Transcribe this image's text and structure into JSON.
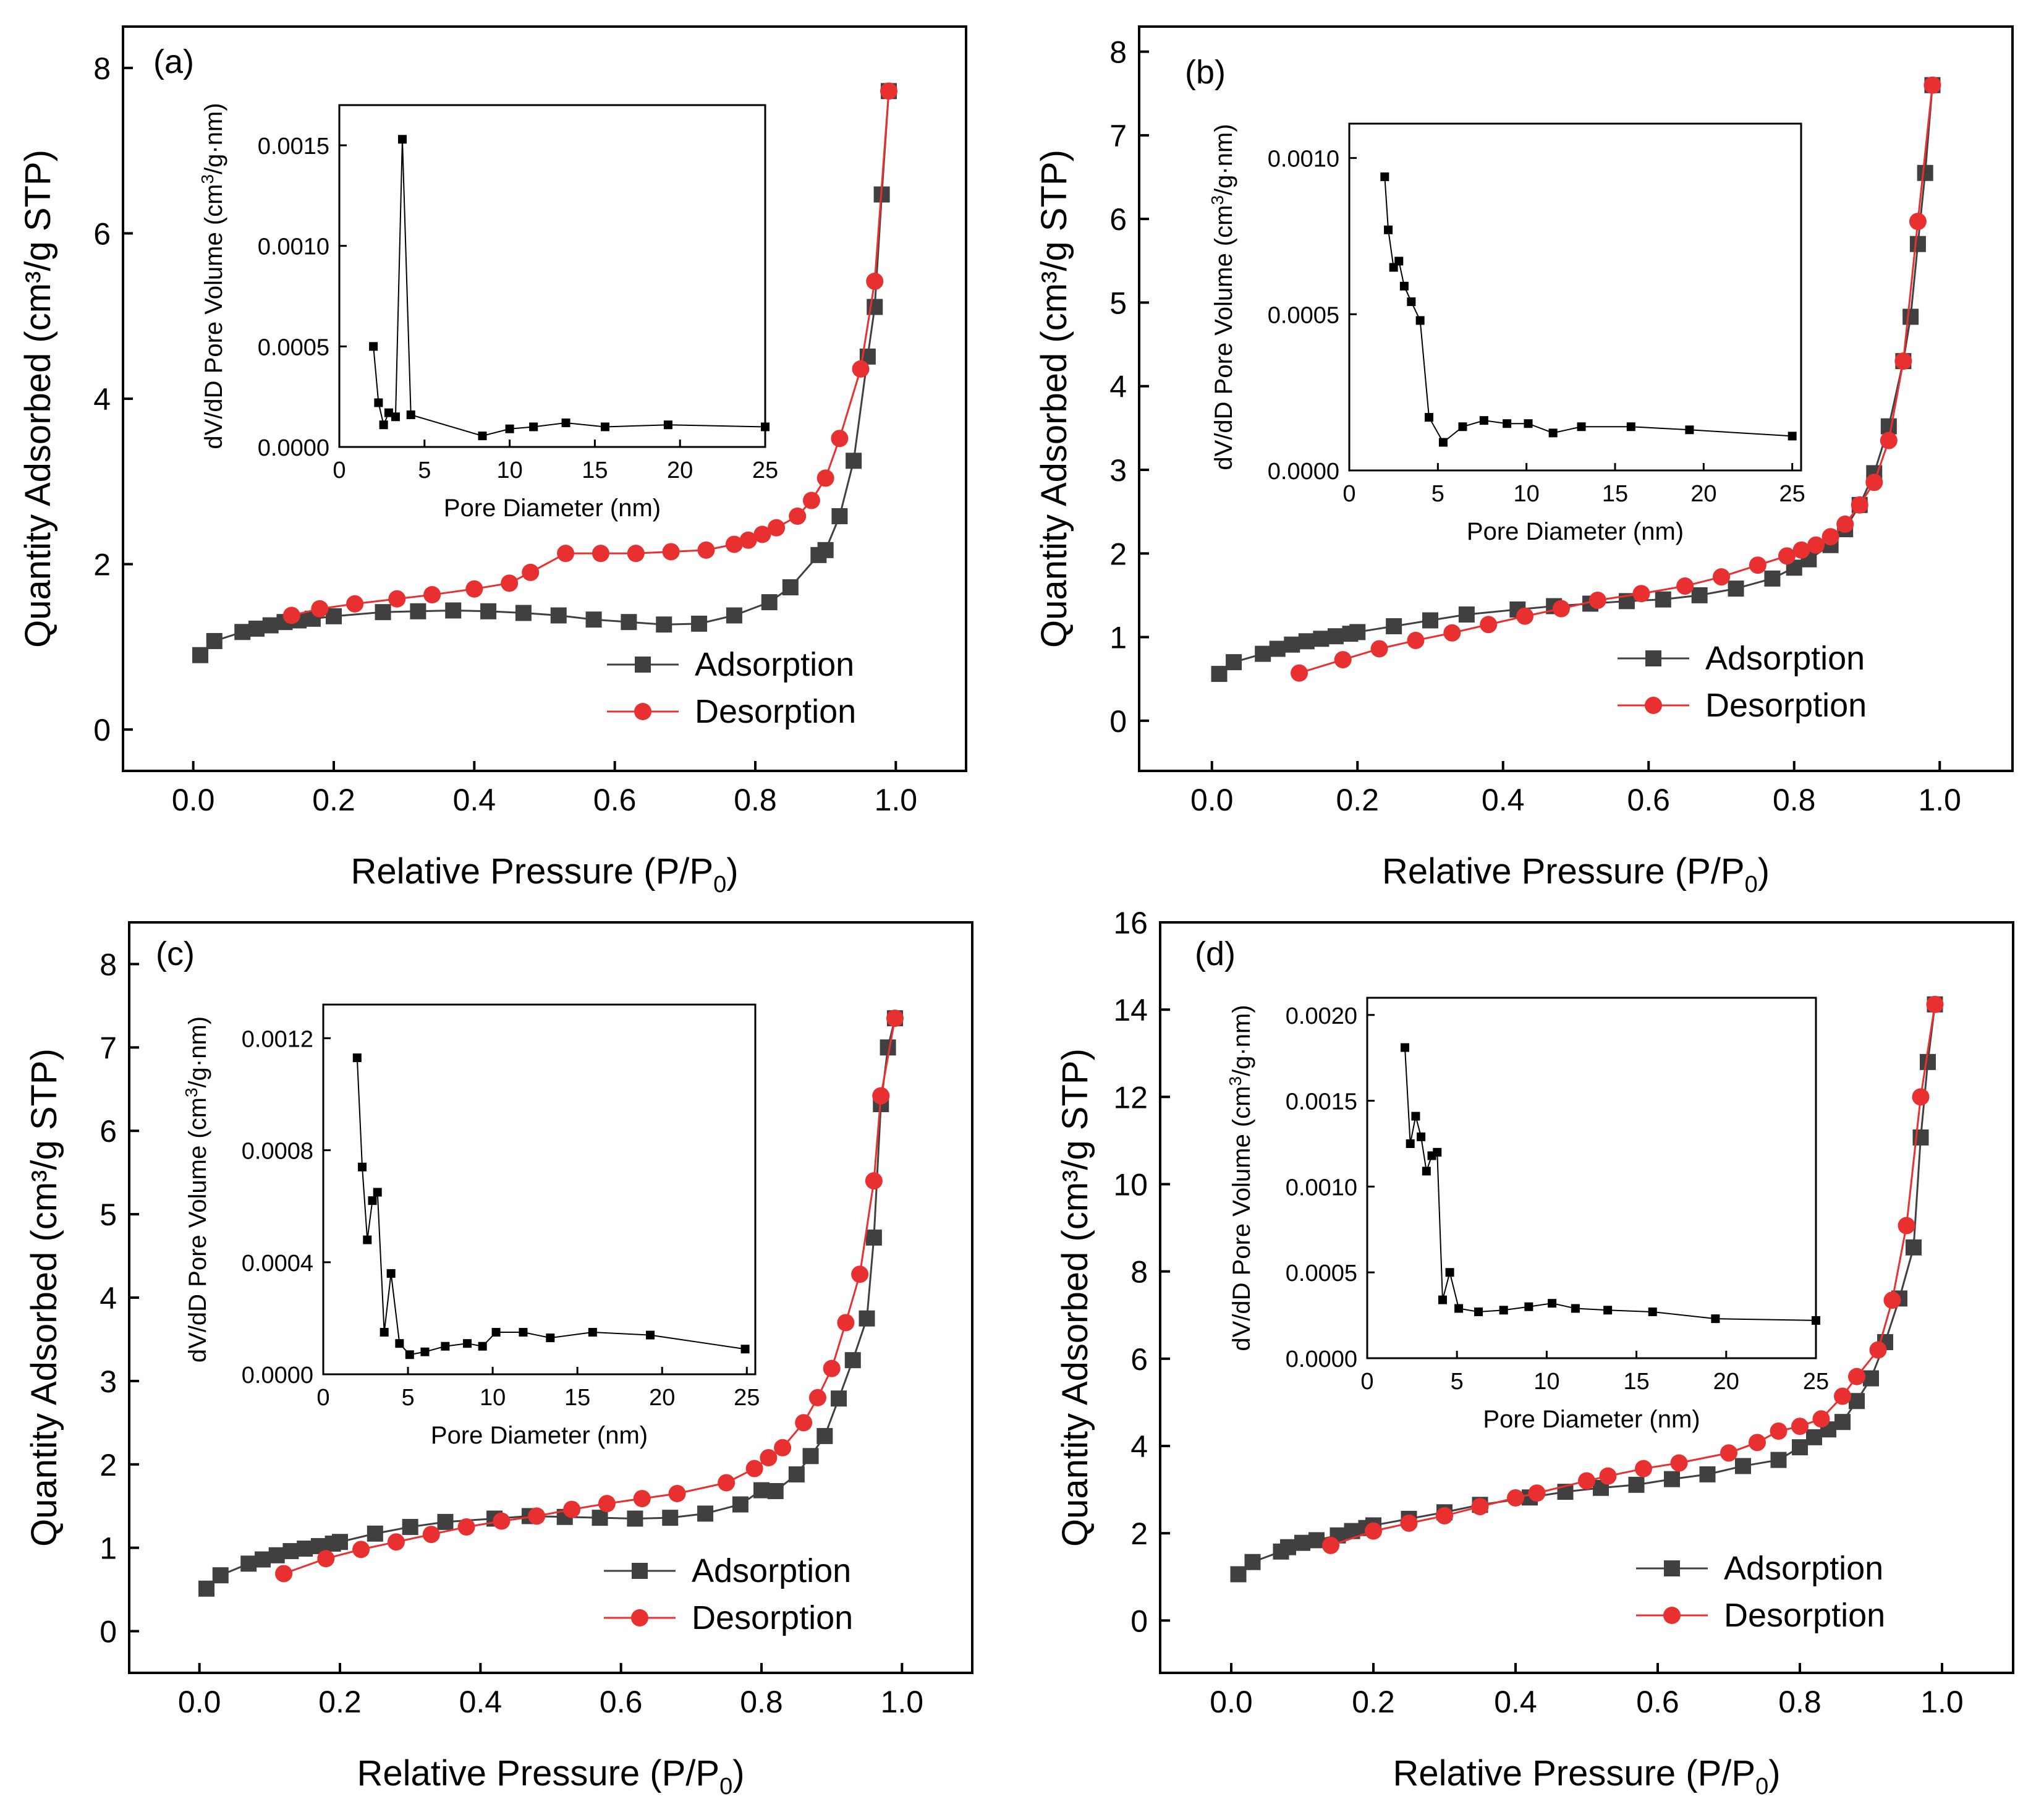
{
  "figure": {
    "background": "#ffffff"
  },
  "chart_data": [
    {
      "id": "a",
      "panel_label": "(a)",
      "type": "line",
      "xlabel": "Relative Pressure (P/P0)",
      "xlabel_main": "Relative Pressure (P/P",
      "xlabel_sub": "0",
      "xlabel_end": ")",
      "ylabel": "Quantity Adsorbed (cm3/g STP)",
      "xlim": [
        -0.1,
        1.1
      ],
      "ylim": [
        -0.5,
        8.5
      ],
      "xticks": [
        0.0,
        0.2,
        0.4,
        0.6,
        0.8,
        1.0
      ],
      "xtick_labels": [
        "0.0",
        "0.2",
        "0.4",
        "0.6",
        "0.8",
        "1.0"
      ],
      "yticks": [
        0,
        2,
        4,
        6,
        8
      ],
      "ytick_labels": [
        "0",
        "2",
        "4",
        "6",
        "8"
      ],
      "legend": [
        "Adsorption",
        "Desorption"
      ],
      "series": [
        {
          "name": "Adsorption",
          "color": "#404040",
          "marker": "square",
          "x": [
            0.01,
            0.03,
            0.07,
            0.09,
            0.11,
            0.13,
            0.15,
            0.17,
            0.2,
            0.27,
            0.32,
            0.37,
            0.42,
            0.47,
            0.52,
            0.57,
            0.62,
            0.67,
            0.72,
            0.77,
            0.82,
            0.85,
            0.89,
            0.9,
            0.92,
            0.94,
            0.96,
            0.97,
            0.98,
            0.99
          ],
          "y": [
            0.9,
            1.07,
            1.18,
            1.22,
            1.26,
            1.3,
            1.32,
            1.34,
            1.37,
            1.42,
            1.43,
            1.44,
            1.43,
            1.41,
            1.38,
            1.33,
            1.3,
            1.27,
            1.28,
            1.38,
            1.54,
            1.72,
            2.11,
            2.17,
            2.58,
            3.25,
            4.51,
            5.11,
            6.47,
            7.72
          ]
        },
        {
          "name": "Desorption",
          "color": "#e83030",
          "marker": "circle",
          "x": [
            0.99,
            0.97,
            0.95,
            0.92,
            0.9,
            0.88,
            0.86,
            0.83,
            0.81,
            0.79,
            0.77,
            0.73,
            0.68,
            0.63,
            0.58,
            0.53,
            0.48,
            0.45,
            0.4,
            0.34,
            0.29,
            0.23,
            0.18,
            0.14
          ],
          "y": [
            7.72,
            5.42,
            4.36,
            3.52,
            3.04,
            2.77,
            2.58,
            2.44,
            2.36,
            2.29,
            2.24,
            2.17,
            2.15,
            2.13,
            2.13,
            2.13,
            1.9,
            1.77,
            1.7,
            1.63,
            1.58,
            1.52,
            1.46,
            1.38
          ]
        }
      ],
      "inset": {
        "xlabel": "Pore Diameter (nm)",
        "ylabel_prefix": "dV/dD Pore Volume (cm",
        "ylabel_sup": "3",
        "ylabel_suffix": "/g·nm)",
        "xlim": [
          0,
          25
        ],
        "ylim": [
          0,
          0.0017
        ],
        "xticks": [
          0,
          5,
          10,
          15,
          20,
          25
        ],
        "xtick_labels": [
          "0",
          "5",
          "10",
          "15",
          "20",
          "25"
        ],
        "yticks": [
          0,
          0.0005,
          0.001,
          0.0015
        ],
        "ytick_labels": [
          "0.0000",
          "0.0005",
          "0.0010",
          "0.0015"
        ],
        "x": [
          2.0,
          2.3,
          2.6,
          2.9,
          3.3,
          3.7,
          4.2,
          8.4,
          10.0,
          11.4,
          13.3,
          15.6,
          19.3,
          25.0
        ],
        "y": [
          0.0005,
          0.00022,
          0.00011,
          0.00017,
          0.00015,
          0.00153,
          0.00016,
          5.5e-05,
          9e-05,
          0.0001,
          0.00012,
          0.0001,
          0.00011,
          0.0001
        ]
      }
    },
    {
      "id": "b",
      "panel_label": "(b)",
      "type": "line",
      "xlabel": "Relative Pressure (P/P0)",
      "xlabel_main": "Relative Pressure (P/P",
      "xlabel_sub": "0",
      "xlabel_end": ")",
      "ylabel": "Quantity Adsorbed (cm3/g STP)",
      "xlim": [
        -0.1,
        1.1
      ],
      "ylim": [
        -0.6,
        8.3
      ],
      "xticks": [
        0.0,
        0.2,
        0.4,
        0.6,
        0.8,
        1.0
      ],
      "xtick_labels": [
        "0.0",
        "0.2",
        "0.4",
        "0.6",
        "0.8",
        "1.0"
      ],
      "yticks": [
        0,
        1,
        2,
        3,
        4,
        5,
        6,
        7,
        8
      ],
      "ytick_labels": [
        "0",
        "1",
        "2",
        "3",
        "4",
        "5",
        "6",
        "7",
        "8"
      ],
      "legend": [
        "Adsorption",
        "Desorption"
      ],
      "series": [
        {
          "name": "Adsorption",
          "color": "#404040",
          "marker": "square",
          "x": [
            0.01,
            0.03,
            0.07,
            0.09,
            0.11,
            0.13,
            0.15,
            0.17,
            0.19,
            0.2,
            0.25,
            0.3,
            0.35,
            0.42,
            0.47,
            0.52,
            0.57,
            0.62,
            0.67,
            0.72,
            0.77,
            0.8,
            0.82,
            0.85,
            0.87,
            0.89,
            0.91,
            0.93,
            0.95,
            0.96,
            0.97,
            0.98,
            0.99
          ],
          "y": [
            0.56,
            0.7,
            0.8,
            0.86,
            0.91,
            0.95,
            0.98,
            1.01,
            1.04,
            1.06,
            1.13,
            1.2,
            1.27,
            1.33,
            1.37,
            1.4,
            1.43,
            1.45,
            1.5,
            1.58,
            1.7,
            1.83,
            1.93,
            2.1,
            2.29,
            2.58,
            2.96,
            3.52,
            4.3,
            4.83,
            5.7,
            6.55,
            7.6
          ]
        },
        {
          "name": "Desorption",
          "color": "#e83030",
          "marker": "circle",
          "x": [
            0.99,
            0.97,
            0.95,
            0.93,
            0.91,
            0.89,
            0.87,
            0.85,
            0.83,
            0.81,
            0.79,
            0.75,
            0.7,
            0.65,
            0.59,
            0.53,
            0.48,
            0.43,
            0.38,
            0.33,
            0.28,
            0.23,
            0.18,
            0.12
          ],
          "y": [
            7.6,
            5.97,
            4.3,
            3.35,
            2.85,
            2.58,
            2.35,
            2.2,
            2.1,
            2.04,
            1.97,
            1.86,
            1.72,
            1.61,
            1.52,
            1.44,
            1.34,
            1.25,
            1.15,
            1.05,
            0.96,
            0.86,
            0.73,
            0.57
          ]
        }
      ],
      "inset": {
        "xlabel": "Pore Diameter (nm)",
        "ylabel_prefix": "dV/dD Pore Volume (cm",
        "ylabel_sup": "3",
        "ylabel_suffix": "/g·nm)",
        "xlim": [
          0,
          25.5
        ],
        "ylim": [
          0,
          0.00111
        ],
        "xticks": [
          0,
          5,
          10,
          15,
          20,
          25
        ],
        "xtick_labels": [
          "0",
          "5",
          "10",
          "15",
          "20",
          "25"
        ],
        "yticks": [
          0,
          0.0005,
          0.001
        ],
        "ytick_labels": [
          "0.0000",
          "0.0005",
          "0.0010"
        ],
        "x": [
          2.0,
          2.2,
          2.5,
          2.8,
          3.1,
          3.5,
          4.0,
          4.5,
          5.3,
          6.4,
          7.6,
          8.9,
          10.1,
          11.5,
          13.1,
          15.9,
          19.2,
          25.0
        ],
        "y": [
          0.00094,
          0.00077,
          0.00065,
          0.00067,
          0.00059,
          0.00054,
          0.00048,
          0.00017,
          9e-05,
          0.00014,
          0.00016,
          0.00015,
          0.00015,
          0.00012,
          0.00014,
          0.00014,
          0.00013,
          0.00011
        ]
      }
    },
    {
      "id": "c",
      "panel_label": "(c)",
      "type": "line",
      "xlabel": "Relative Pressure (P/P0)",
      "xlabel_main": "Relative Pressure (P/P",
      "xlabel_sub": "0",
      "xlabel_end": ")",
      "ylabel": "Quantity Adsorbed (cm3/g STP)",
      "xlim": [
        -0.1,
        1.1
      ],
      "ylim": [
        -0.5,
        8.5
      ],
      "xticks": [
        0.0,
        0.2,
        0.4,
        0.6,
        0.8,
        1.0
      ],
      "xtick_labels": [
        "0.0",
        "0.2",
        "0.4",
        "0.6",
        "0.8",
        "1.0"
      ],
      "yticks": [
        0,
        1,
        2,
        3,
        4,
        5,
        6,
        7,
        8
      ],
      "ytick_labels": [
        "0",
        "1",
        "2",
        "3",
        "4",
        "5",
        "6",
        "7",
        "8"
      ],
      "legend": [
        "Adsorption",
        "Desorption"
      ],
      "series": [
        {
          "name": "Adsorption",
          "color": "#404040",
          "marker": "square",
          "x": [
            0.01,
            0.03,
            0.07,
            0.09,
            0.11,
            0.13,
            0.15,
            0.17,
            0.19,
            0.2,
            0.25,
            0.3,
            0.35,
            0.42,
            0.47,
            0.52,
            0.57,
            0.62,
            0.67,
            0.72,
            0.77,
            0.8,
            0.82,
            0.85,
            0.87,
            0.89,
            0.91,
            0.93,
            0.95,
            0.96,
            0.97,
            0.98,
            0.99
          ],
          "y": [
            0.51,
            0.67,
            0.81,
            0.86,
            0.91,
            0.96,
            0.99,
            1.02,
            1.05,
            1.07,
            1.17,
            1.25,
            1.31,
            1.35,
            1.38,
            1.37,
            1.36,
            1.35,
            1.36,
            1.41,
            1.52,
            1.69,
            1.68,
            1.88,
            2.1,
            2.34,
            2.79,
            3.25,
            3.75,
            4.72,
            6.32,
            7.0,
            7.35
          ]
        },
        {
          "name": "Desorption",
          "color": "#e83030",
          "marker": "circle",
          "x": [
            0.99,
            0.97,
            0.96,
            0.94,
            0.92,
            0.9,
            0.88,
            0.86,
            0.83,
            0.81,
            0.79,
            0.75,
            0.68,
            0.63,
            0.58,
            0.53,
            0.48,
            0.43,
            0.38,
            0.33,
            0.28,
            0.23,
            0.18,
            0.12
          ],
          "y": [
            7.35,
            6.42,
            5.4,
            4.28,
            3.7,
            3.15,
            2.8,
            2.5,
            2.2,
            2.08,
            1.95,
            1.78,
            1.65,
            1.59,
            1.53,
            1.46,
            1.38,
            1.32,
            1.25,
            1.16,
            1.07,
            0.98,
            0.87,
            0.69
          ]
        }
      ],
      "inset": {
        "xlabel": "Pore Diameter (nm)",
        "ylabel_prefix": "dV/dD Pore Volume (cm",
        "ylabel_sup": "3",
        "ylabel_suffix": "/g·nm)",
        "xlim": [
          0,
          25.5
        ],
        "ylim": [
          0,
          0.00132
        ],
        "xticks": [
          0,
          5,
          10,
          15,
          20,
          25
        ],
        "xtick_labels": [
          "0",
          "5",
          "10",
          "15",
          "20",
          "25"
        ],
        "yticks": [
          0,
          0.0004,
          0.0008,
          0.0012
        ],
        "ytick_labels": [
          "0.0000",
          "0.0004",
          "0.0008",
          "0.0012"
        ],
        "x": [
          2.0,
          2.3,
          2.6,
          2.9,
          3.2,
          3.6,
          4.0,
          4.5,
          5.1,
          6.0,
          7.2,
          8.5,
          9.4,
          10.2,
          11.8,
          13.4,
          15.9,
          19.3,
          24.9
        ],
        "y": [
          0.00113,
          0.00074,
          0.00048,
          0.00062,
          0.00065,
          0.00015,
          0.00036,
          0.00011,
          7e-05,
          8e-05,
          0.0001,
          0.00011,
          0.0001,
          0.00015,
          0.00015,
          0.00013,
          0.00015,
          0.00014,
          9e-05
        ]
      }
    },
    {
      "id": "d",
      "panel_label": "(d)",
      "type": "line",
      "xlabel": "Relative Pressure (P/P0)",
      "xlabel_main": "Relative Pressure (P/P",
      "xlabel_sub": "0",
      "xlabel_end": ")",
      "ylabel": "Quantity Adsorbed (cm3/g STP)",
      "xlim": [
        -0.1,
        1.1
      ],
      "ylim": [
        -1.2,
        16.0
      ],
      "xticks": [
        0.0,
        0.2,
        0.4,
        0.6,
        0.8,
        1.0
      ],
      "xtick_labels": [
        "0.0",
        "0.2",
        "0.4",
        "0.6",
        "0.8",
        "1.0"
      ],
      "yticks": [
        0,
        2,
        4,
        6,
        8,
        10,
        12,
        14,
        16
      ],
      "ytick_labels": [
        "0",
        "2",
        "4",
        "6",
        "8",
        "10",
        "12",
        "14",
        "16"
      ],
      "legend": [
        "Adsorption",
        "Desorption"
      ],
      "series": [
        {
          "name": "Adsorption",
          "color": "#404040",
          "marker": "square",
          "x": [
            0.01,
            0.03,
            0.07,
            0.08,
            0.1,
            0.12,
            0.15,
            0.17,
            0.19,
            0.2,
            0.25,
            0.3,
            0.35,
            0.42,
            0.47,
            0.52,
            0.57,
            0.62,
            0.67,
            0.72,
            0.77,
            0.8,
            0.82,
            0.84,
            0.86,
            0.88,
            0.9,
            0.92,
            0.94,
            0.96,
            0.97,
            0.98,
            0.99
          ],
          "y": [
            1.06,
            1.34,
            1.58,
            1.68,
            1.78,
            1.84,
            1.95,
            2.05,
            2.12,
            2.18,
            2.33,
            2.48,
            2.65,
            2.82,
            2.95,
            3.04,
            3.11,
            3.24,
            3.35,
            3.54,
            3.68,
            3.97,
            4.2,
            4.38,
            4.55,
            5.03,
            5.55,
            6.38,
            7.38,
            8.55,
            11.07,
            12.8,
            14.12
          ]
        },
        {
          "name": "Desorption",
          "color": "#e83030",
          "marker": "circle",
          "x": [
            0.99,
            0.97,
            0.95,
            0.93,
            0.91,
            0.88,
            0.86,
            0.83,
            0.8,
            0.77,
            0.74,
            0.7,
            0.63,
            0.58,
            0.53,
            0.5,
            0.43,
            0.4,
            0.35,
            0.3,
            0.25,
            0.2,
            0.14
          ],
          "y": [
            14.12,
            12.0,
            9.05,
            7.34,
            6.2,
            5.59,
            5.14,
            4.62,
            4.45,
            4.34,
            4.08,
            3.84,
            3.61,
            3.48,
            3.31,
            3.2,
            2.92,
            2.81,
            2.61,
            2.4,
            2.23,
            2.05,
            1.72
          ]
        }
      ],
      "inset": {
        "xlabel": "Pore Diameter (nm)",
        "ylabel_prefix": "dV/dD Pore Volume (cm",
        "ylabel_sup": "3",
        "ylabel_suffix": "/g·nm)",
        "xlim": [
          0,
          25
        ],
        "ylim": [
          0,
          0.0021
        ],
        "xticks": [
          0,
          5,
          10,
          15,
          20,
          25
        ],
        "xtick_labels": [
          "0",
          "5",
          "10",
          "15",
          "20",
          "25"
        ],
        "yticks": [
          0,
          0.0005,
          0.001,
          0.0015,
          0.002
        ],
        "ytick_labels": [
          "0.0000",
          "0.0005",
          "0.0010",
          "0.0015",
          "0.0020"
        ],
        "x": [
          2.1,
          2.4,
          2.7,
          3.0,
          3.3,
          3.6,
          3.9,
          4.2,
          4.6,
          5.1,
          6.2,
          7.6,
          9.0,
          10.3,
          11.6,
          13.4,
          15.9,
          19.4,
          25.0
        ],
        "y": [
          0.00181,
          0.00125,
          0.00141,
          0.00129,
          0.00109,
          0.00118,
          0.0012,
          0.00034,
          0.0005,
          0.00029,
          0.00027,
          0.00028,
          0.0003,
          0.00032,
          0.00029,
          0.00028,
          0.00027,
          0.00023,
          0.00022
        ]
      }
    }
  ]
}
